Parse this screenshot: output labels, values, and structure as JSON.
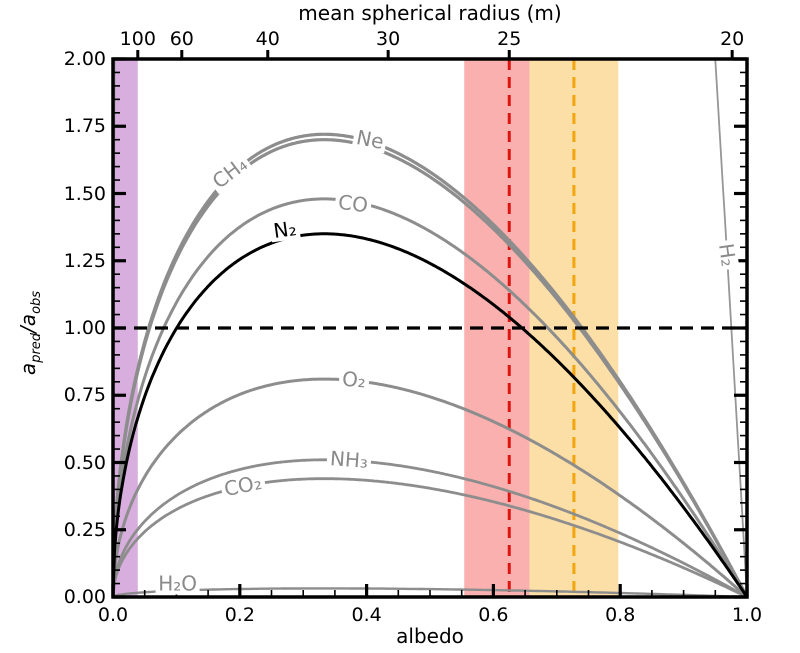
{
  "ylabel_parts": {
    "a1": "a",
    "sub1": "pred",
    "slash": "/",
    "a2": "a",
    "sub2": "obs"
  },
  "chart_data": {
    "type": "line",
    "top_axis_label": "mean spherical radius (m)",
    "xlabel": "albedo",
    "ylabel": "a_pred/a_obs",
    "xlim": [
      0,
      1
    ],
    "ylim": [
      0,
      2
    ],
    "grid": false,
    "legend": "inline curve labels",
    "curve_model": "y = k * sqrt(albedo) * (1 - albedo); peak value = 0.3849*k at albedo = 1/3",
    "top_axis_relation": "albedo = 390.6 / radius_m^2",
    "x_ticks": [
      {
        "v": 0.0,
        "label": "0.0"
      },
      {
        "v": 0.2,
        "label": "0.2"
      },
      {
        "v": 0.4,
        "label": "0.4"
      },
      {
        "v": 0.6,
        "label": "0.6"
      },
      {
        "v": 0.8,
        "label": "0.8"
      },
      {
        "v": 1.0,
        "label": "1.0"
      }
    ],
    "y_ticks": [
      {
        "v": 0.0,
        "label": "0.00"
      },
      {
        "v": 0.25,
        "label": "0.25"
      },
      {
        "v": 0.5,
        "label": "0.50"
      },
      {
        "v": 0.75,
        "label": "0.75"
      },
      {
        "v": 1.0,
        "label": "1.00"
      },
      {
        "v": 1.25,
        "label": "1.25"
      },
      {
        "v": 1.5,
        "label": "1.50"
      },
      {
        "v": 1.75,
        "label": "1.75"
      },
      {
        "v": 2.0,
        "label": "2.00"
      }
    ],
    "minor_tick_step": 0.05,
    "top_ticks": [
      {
        "v": 0.0391,
        "label": "100"
      },
      {
        "v": 0.1085,
        "label": "60"
      },
      {
        "v": 0.2441,
        "label": "40"
      },
      {
        "v": 0.434,
        "label": "30"
      },
      {
        "v": 0.625,
        "label": "25"
      },
      {
        "v": 0.9766,
        "label": "20"
      }
    ],
    "series": [
      {
        "id": "CH4",
        "label": "CH₄",
        "k": 4.417,
        "peak_y": 1.7,
        "peak_x": 0.333,
        "color": "#8d8d8d",
        "width": 3.2,
        "label_color": "#8a8a8a",
        "label_pos": {
          "x": 0.185,
          "y": 1.575,
          "angle": -37
        }
      },
      {
        "id": "Ne",
        "label": "Ne",
        "k": 4.469,
        "peak_y": 1.72,
        "peak_x": 0.333,
        "color": "#8d8d8d",
        "width": 3.2,
        "label_color": "#8a8a8a",
        "label_pos": {
          "x": 0.405,
          "y": 1.7,
          "angle": 11
        }
      },
      {
        "id": "CO",
        "label": "CO",
        "k": 3.845,
        "peak_y": 1.48,
        "peak_x": 0.333,
        "color": "#8d8d8d",
        "width": 3.0,
        "label_color": "#8a8a8a",
        "label_pos": {
          "x": 0.378,
          "y": 1.462,
          "angle": 7
        }
      },
      {
        "id": "O2",
        "label": "O₂",
        "k": 2.105,
        "peak_y": 0.81,
        "peak_x": 0.333,
        "color": "#8d8d8d",
        "width": 3.0,
        "label_color": "#8a8a8a",
        "label_pos": {
          "x": 0.38,
          "y": 0.805,
          "angle": 5
        }
      },
      {
        "id": "NH3",
        "label": "NH₃",
        "k": 1.325,
        "peak_y": 0.51,
        "peak_x": 0.333,
        "color": "#8d8d8d",
        "width": 2.8,
        "label_color": "#8a8a8a",
        "label_pos": {
          "x": 0.372,
          "y": 0.508,
          "angle": 4
        }
      },
      {
        "id": "CO2",
        "label": "CO₂",
        "k": 1.143,
        "peak_y": 0.44,
        "peak_x": 0.333,
        "color": "#8d8d8d",
        "width": 2.8,
        "label_color": "#8a8a8a",
        "label_pos": {
          "x": 0.205,
          "y": 0.412,
          "angle": -12
        }
      },
      {
        "id": "H2O",
        "label": "H₂O",
        "k": 0.083,
        "peak_y": 0.032,
        "peak_x": 0.333,
        "color": "#8d8d8d",
        "width": 2.4,
        "label_color": "#8a8a8a",
        "label_pos": {
          "x": 0.102,
          "y": 0.05,
          "angle": 0
        }
      },
      {
        "id": "H2",
        "label": "H₂",
        "k": 41.0,
        "peak_y": 15.78,
        "peak_x": 0.333,
        "color": "#969696",
        "width": 1.8,
        "label_color": "#8a8a8a",
        "label_pos": {
          "x": 0.968,
          "y": 1.27,
          "angle": 82
        }
      },
      {
        "id": "N2",
        "label": "N₂",
        "k": 3.508,
        "peak_y": 1.35,
        "peak_x": 0.333,
        "color": "#000000",
        "width": 3.0,
        "label_color": "#000000",
        "label_pos": {
          "x": 0.272,
          "y": 1.365,
          "angle": -8
        }
      }
    ],
    "reference_lines": {
      "horizontal": [
        {
          "y": 1.0,
          "color": "#000000",
          "dash": "13 8",
          "width": 3.2,
          "name": "unity-ratio-line"
        }
      ],
      "vertical": [
        {
          "x": 0.625,
          "color": "#de1410",
          "dash": "11 7",
          "width": 3.0,
          "name": "red-dashed-albedo-line"
        },
        {
          "x": 0.727,
          "color": "#f2a50c",
          "dash": "11 7",
          "width": 3.0,
          "name": "orange-dashed-albedo-line"
        }
      ]
    },
    "bands": [
      {
        "x0": 0.0,
        "x1": 0.0391,
        "color": "#d7aede",
        "name": "purple-albedo-band"
      },
      {
        "x0": 0.554,
        "x1": 0.657,
        "color": "#f9b0af",
        "name": "red-albedo-band"
      },
      {
        "x0": 0.657,
        "x1": 0.797,
        "color": "#fcdfa6",
        "name": "orange-albedo-band"
      }
    ]
  }
}
